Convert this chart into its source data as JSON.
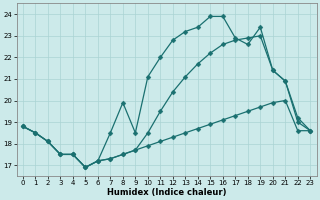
{
  "bg_color": "#cceaea",
  "grid_color": "#aad4d4",
  "line_color": "#1a7070",
  "xlabel": "Humidex (Indice chaleur)",
  "xlim": [
    -0.5,
    23.5
  ],
  "ylim": [
    16.5,
    24.5
  ],
  "yticks": [
    17,
    18,
    19,
    20,
    21,
    22,
    23,
    24
  ],
  "xticks": [
    0,
    1,
    2,
    3,
    4,
    5,
    6,
    7,
    8,
    9,
    10,
    11,
    12,
    13,
    14,
    15,
    16,
    17,
    18,
    19,
    20,
    21,
    22,
    23
  ],
  "line1_x": [
    0,
    1,
    2,
    3,
    4,
    5,
    6,
    7,
    8,
    9,
    10,
    11,
    12,
    13,
    14,
    15,
    16,
    17,
    18,
    19,
    20,
    21,
    22,
    23
  ],
  "line1_y": [
    18.8,
    18.5,
    18.1,
    17.5,
    17.5,
    16.9,
    17.2,
    17.3,
    17.5,
    17.7,
    17.9,
    18.1,
    18.3,
    18.5,
    18.7,
    18.9,
    19.1,
    19.3,
    19.5,
    19.7,
    19.9,
    20.0,
    18.6,
    18.6
  ],
  "line2_x": [
    0,
    1,
    2,
    3,
    4,
    5,
    6,
    7,
    8,
    9,
    10,
    11,
    12,
    13,
    14,
    15,
    16,
    17,
    18,
    19,
    20,
    21,
    22,
    23
  ],
  "line2_y": [
    18.8,
    18.5,
    18.1,
    17.5,
    17.5,
    16.9,
    17.2,
    17.3,
    17.5,
    17.7,
    18.5,
    19.5,
    20.4,
    21.1,
    21.7,
    22.2,
    22.6,
    22.8,
    22.9,
    23.0,
    21.4,
    20.9,
    19.0,
    18.6
  ],
  "line3_x": [
    0,
    1,
    2,
    3,
    4,
    5,
    6,
    7,
    8,
    9,
    10,
    11,
    12,
    13,
    14,
    15,
    16,
    17,
    18,
    19,
    20,
    21,
    22,
    23
  ],
  "line3_y": [
    18.8,
    18.5,
    18.1,
    17.5,
    17.5,
    16.9,
    17.2,
    18.5,
    19.9,
    18.5,
    21.1,
    22.0,
    22.8,
    23.2,
    23.4,
    23.9,
    23.9,
    22.9,
    22.6,
    23.4,
    21.4,
    20.9,
    19.2,
    18.6
  ]
}
